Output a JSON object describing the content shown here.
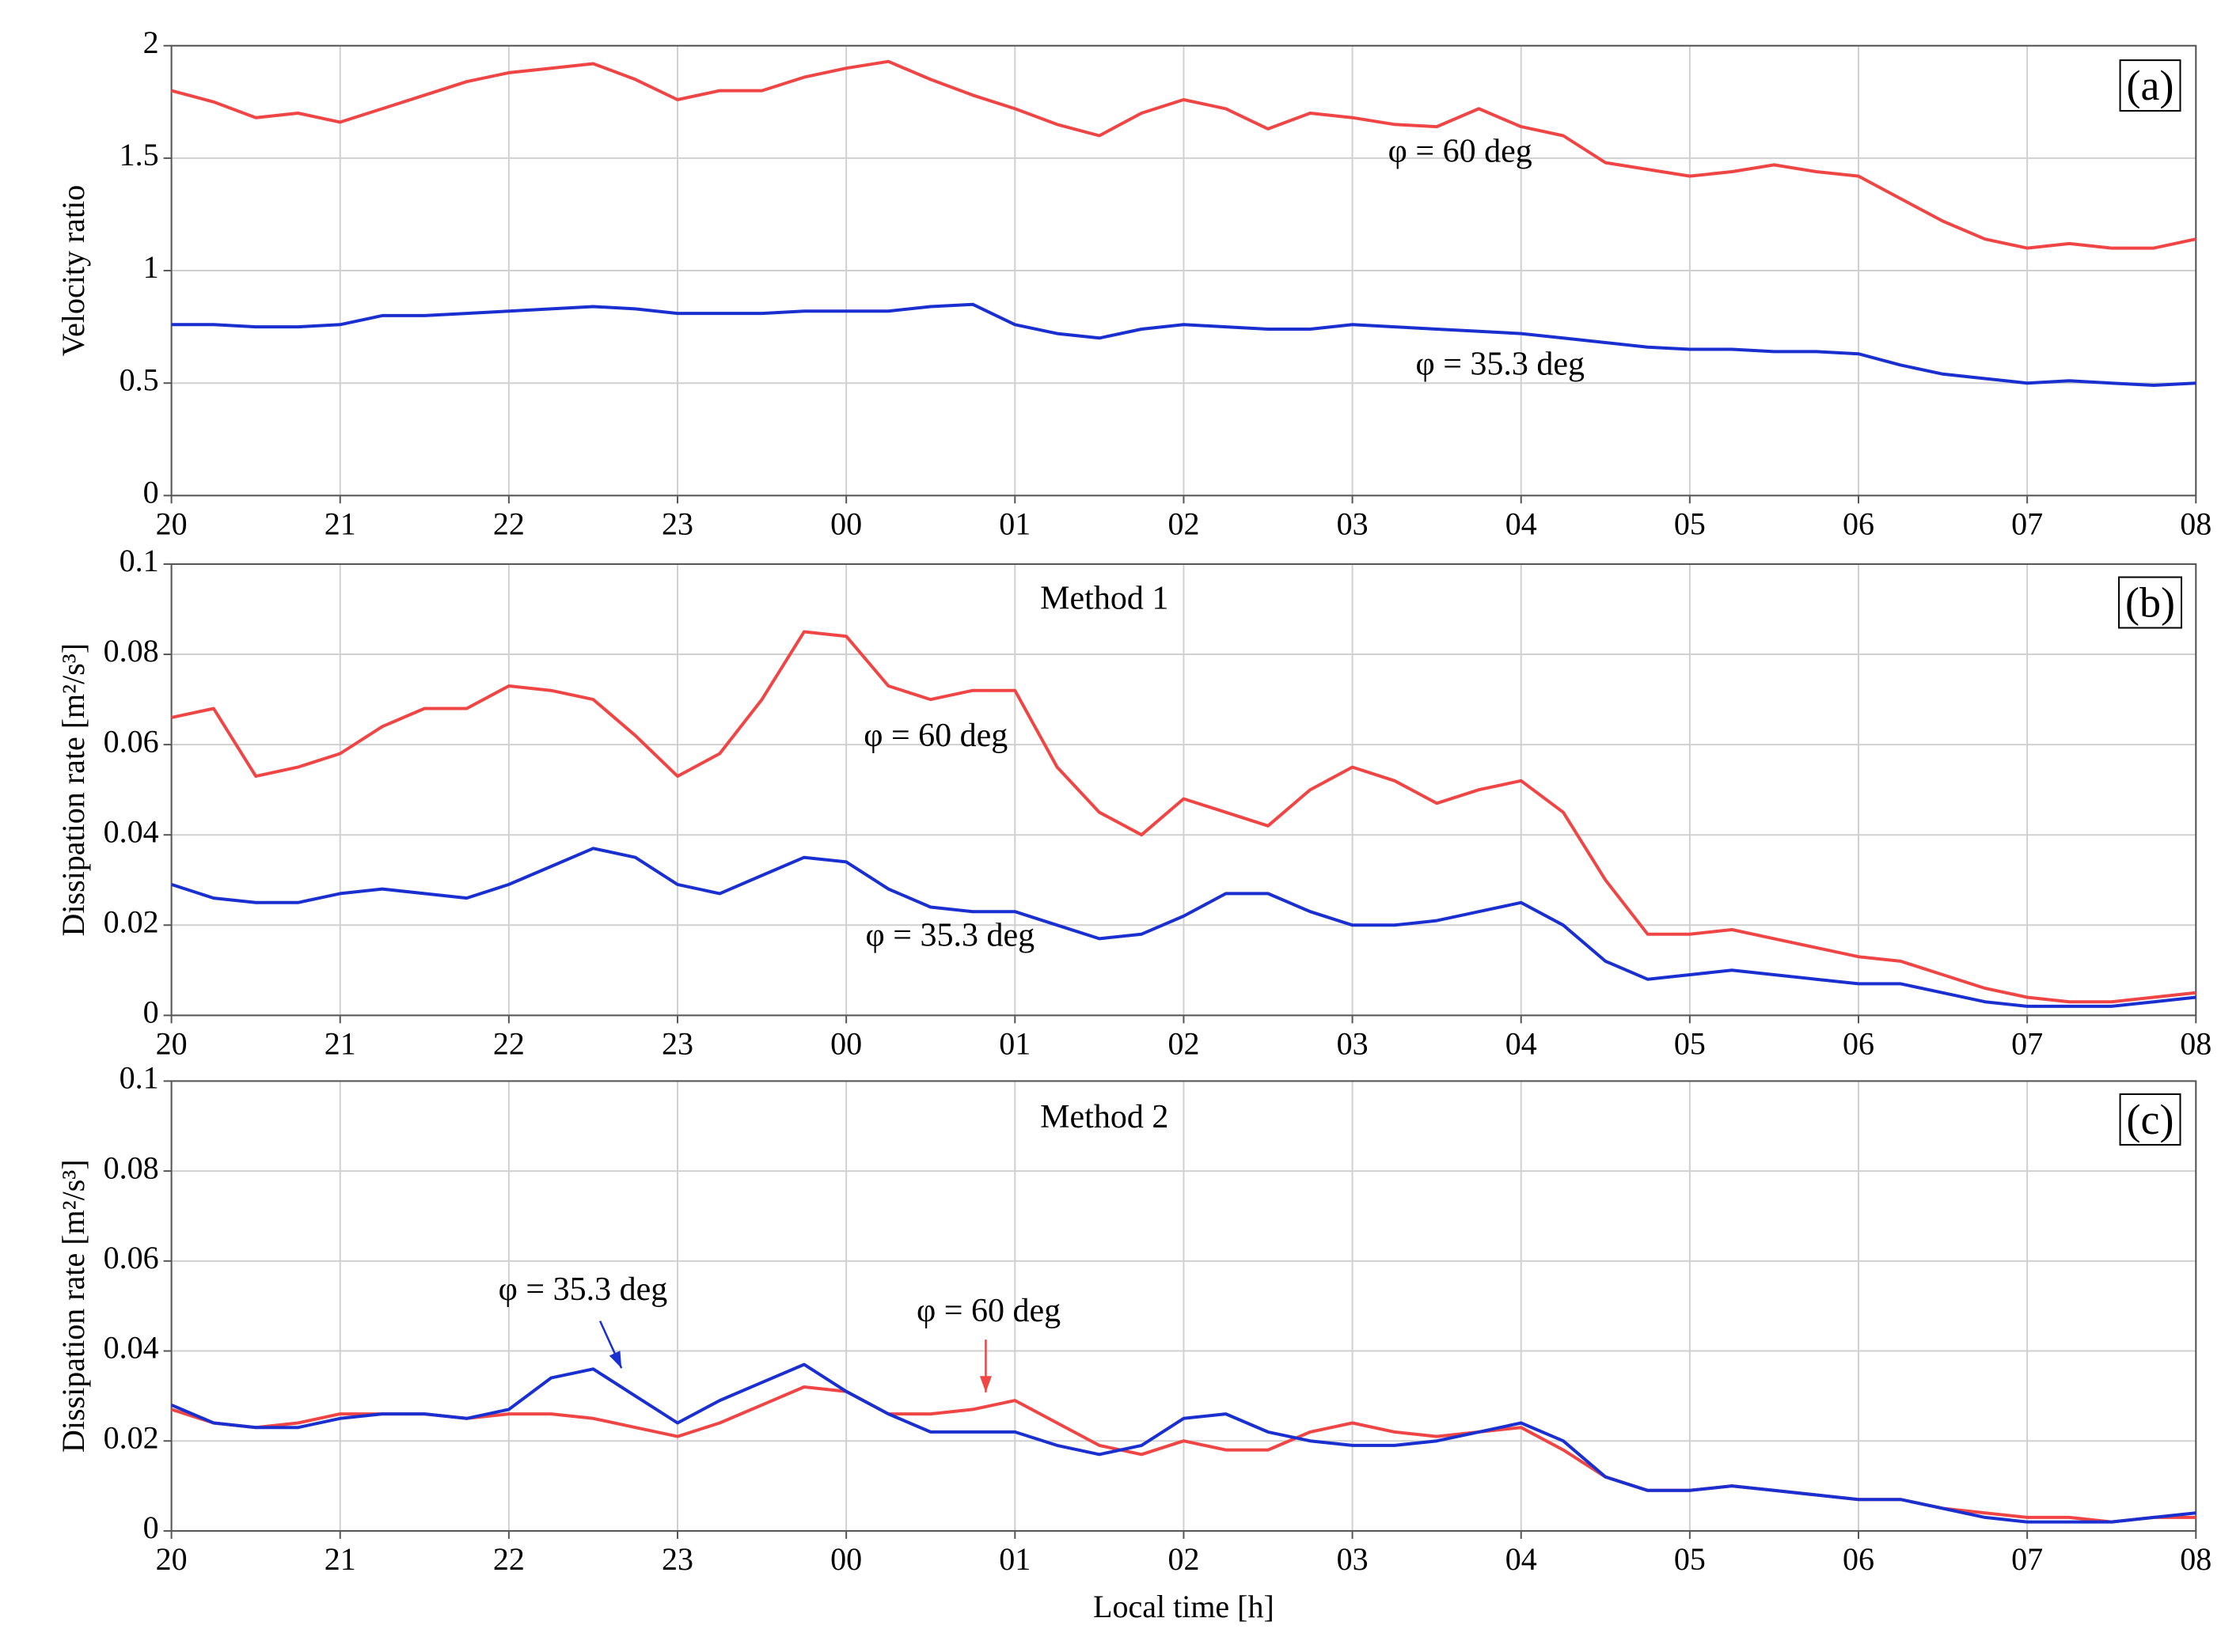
{
  "chart_data": [
    {
      "type": "line",
      "categories": [
        "20",
        null,
        null,
        null,
        "21",
        null,
        null,
        null,
        "22",
        null,
        null,
        null,
        "23",
        null,
        null,
        null,
        "00",
        null,
        null,
        null,
        "01",
        null,
        null,
        null,
        "02",
        null,
        null,
        null,
        "03",
        null,
        null,
        null,
        "04",
        null,
        null,
        null,
        "05",
        null,
        null,
        null,
        "06",
        null,
        null,
        null,
        "07",
        null,
        null,
        null,
        "08"
      ],
      "ylabel": "Velocity ratio",
      "ylim": [
        0,
        2
      ],
      "yticks": [
        0,
        0.5,
        1,
        1.5,
        2
      ],
      "grid": true,
      "annotations": [
        "(a)",
        "φ = 60 deg",
        "φ = 35.3 deg"
      ],
      "series": [
        {
          "name": "φ = 60 deg",
          "color": "#f04545",
          "values": [
            1.8,
            1.75,
            1.68,
            1.7,
            1.66,
            1.72,
            1.78,
            1.84,
            1.88,
            1.9,
            1.92,
            1.85,
            1.76,
            1.8,
            1.8,
            1.86,
            1.9,
            1.93,
            1.85,
            1.78,
            1.72,
            1.65,
            1.6,
            1.7,
            1.76,
            1.72,
            1.63,
            1.7,
            1.68,
            1.65,
            1.64,
            1.72,
            1.64,
            1.6,
            1.48,
            1.45,
            1.42,
            1.44,
            1.47,
            1.44,
            1.42,
            1.32,
            1.22,
            1.14,
            1.1,
            1.12,
            1.1,
            1.1,
            1.14
          ]
        },
        {
          "name": "φ = 35.3 deg",
          "color": "#1a2fd0",
          "values": [
            0.76,
            0.76,
            0.75,
            0.75,
            0.76,
            0.8,
            0.8,
            0.81,
            0.82,
            0.83,
            0.84,
            0.83,
            0.81,
            0.81,
            0.81,
            0.82,
            0.82,
            0.82,
            0.84,
            0.85,
            0.76,
            0.72,
            0.7,
            0.74,
            0.76,
            0.75,
            0.74,
            0.74,
            0.76,
            0.75,
            0.74,
            0.73,
            0.72,
            0.7,
            0.68,
            0.66,
            0.65,
            0.65,
            0.64,
            0.64,
            0.63,
            0.58,
            0.54,
            0.52,
            0.5,
            0.51,
            0.5,
            0.49,
            0.5
          ]
        }
      ]
    },
    {
      "type": "line",
      "categories": [
        "20",
        null,
        null,
        null,
        "21",
        null,
        null,
        null,
        "22",
        null,
        null,
        null,
        "23",
        null,
        null,
        null,
        "00",
        null,
        null,
        null,
        "01",
        null,
        null,
        null,
        "02",
        null,
        null,
        null,
        "03",
        null,
        null,
        null,
        "04",
        null,
        null,
        null,
        "05",
        null,
        null,
        null,
        "06",
        null,
        null,
        null,
        "07",
        null,
        null,
        null,
        "08"
      ],
      "ylabel": "Dissipation rate [m²/s³]",
      "ylim": [
        0,
        0.1
      ],
      "yticks": [
        0,
        0.02,
        0.04,
        0.06,
        0.08,
        0.1
      ],
      "grid": true,
      "annotations": [
        "Method 1",
        "(b)",
        "φ = 60 deg",
        "φ = 35.3 deg"
      ],
      "series": [
        {
          "name": "φ = 60 deg",
          "color": "#f04545",
          "values": [
            0.066,
            0.068,
            0.053,
            0.055,
            0.058,
            0.064,
            0.068,
            0.068,
            0.073,
            0.072,
            0.07,
            0.062,
            0.053,
            0.058,
            0.07,
            0.085,
            0.084,
            0.073,
            0.07,
            0.072,
            0.072,
            0.055,
            0.045,
            0.04,
            0.048,
            0.045,
            0.042,
            0.05,
            0.055,
            0.052,
            0.047,
            0.05,
            0.052,
            0.045,
            0.03,
            0.018,
            0.018,
            0.019,
            0.017,
            0.015,
            0.013,
            0.012,
            0.009,
            0.006,
            0.004,
            0.003,
            0.003,
            0.004,
            0.005
          ]
        },
        {
          "name": "φ = 35.3 deg",
          "color": "#1a2fd0",
          "values": [
            0.029,
            0.026,
            0.025,
            0.025,
            0.027,
            0.028,
            0.027,
            0.026,
            0.029,
            0.033,
            0.037,
            0.035,
            0.029,
            0.027,
            0.031,
            0.035,
            0.034,
            0.028,
            0.024,
            0.023,
            0.023,
            0.02,
            0.017,
            0.018,
            0.022,
            0.027,
            0.027,
            0.023,
            0.02,
            0.02,
            0.021,
            0.023,
            0.025,
            0.02,
            0.012,
            0.008,
            0.009,
            0.01,
            0.009,
            0.008,
            0.007,
            0.007,
            0.005,
            0.003,
            0.002,
            0.002,
            0.002,
            0.003,
            0.004
          ]
        }
      ]
    },
    {
      "type": "line",
      "categories": [
        "20",
        null,
        null,
        null,
        "21",
        null,
        null,
        null,
        "22",
        null,
        null,
        null,
        "23",
        null,
        null,
        null,
        "00",
        null,
        null,
        null,
        "01",
        null,
        null,
        null,
        "02",
        null,
        null,
        null,
        "03",
        null,
        null,
        null,
        "04",
        null,
        null,
        null,
        "05",
        null,
        null,
        null,
        "06",
        null,
        null,
        null,
        "07",
        null,
        null,
        null,
        "08"
      ],
      "ylabel": "Dissipation rate [m²/s³]",
      "xlabel": "Local time [h]",
      "ylim": [
        0,
        0.1
      ],
      "yticks": [
        0,
        0.02,
        0.04,
        0.06,
        0.08,
        0.1
      ],
      "grid": true,
      "annotations": [
        "Method 2",
        "(c)",
        "φ = 35.3 deg",
        "φ = 60 deg"
      ],
      "series": [
        {
          "name": "φ = 60 deg",
          "color": "#f04545",
          "values": [
            0.027,
            0.024,
            0.023,
            0.024,
            0.026,
            0.026,
            0.026,
            0.025,
            0.026,
            0.026,
            0.025,
            0.023,
            0.021,
            0.024,
            0.028,
            0.032,
            0.031,
            0.026,
            0.026,
            0.027,
            0.029,
            0.024,
            0.019,
            0.017,
            0.02,
            0.018,
            0.018,
            0.022,
            0.024,
            0.022,
            0.021,
            0.022,
            0.023,
            0.018,
            0.012,
            0.009,
            0.009,
            0.01,
            0.009,
            0.008,
            0.007,
            0.007,
            0.005,
            0.004,
            0.003,
            0.003,
            0.002,
            0.003,
            0.003
          ]
        },
        {
          "name": "φ = 35.3 deg",
          "color": "#1a2fd0",
          "values": [
            0.028,
            0.024,
            0.023,
            0.023,
            0.025,
            0.026,
            0.026,
            0.025,
            0.027,
            0.034,
            0.036,
            0.03,
            0.024,
            0.029,
            0.033,
            0.037,
            0.031,
            0.026,
            0.022,
            0.022,
            0.022,
            0.019,
            0.017,
            0.019,
            0.025,
            0.026,
            0.022,
            0.02,
            0.019,
            0.019,
            0.02,
            0.022,
            0.024,
            0.02,
            0.012,
            0.009,
            0.009,
            0.01,
            0.009,
            0.008,
            0.007,
            0.007,
            0.005,
            0.003,
            0.002,
            0.002,
            0.002,
            0.003,
            0.004
          ]
        }
      ]
    }
  ]
}
